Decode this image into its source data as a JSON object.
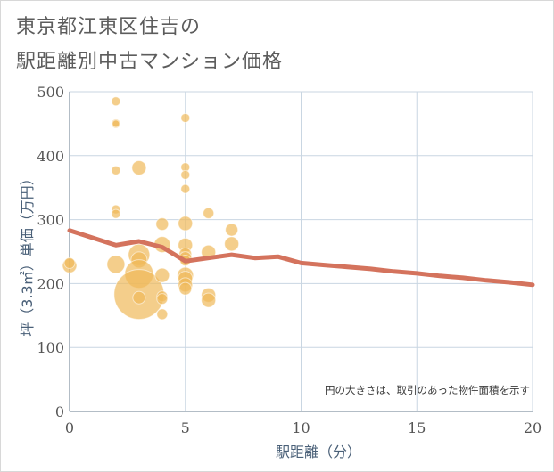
{
  "title_lines": [
    "東京都江東区住吉の",
    "駅距離別中古マンション価格"
  ],
  "chart_data": {
    "type": "scatter",
    "xlabel": "駅距離（分）",
    "ylabel": "坪（3.3㎡）単価（万円）",
    "xlim": [
      0,
      20
    ],
    "ylim": [
      0,
      500
    ],
    "xticks": [
      0,
      5,
      10,
      15,
      20
    ],
    "yticks": [
      0,
      100,
      200,
      300,
      400,
      500
    ],
    "note": "円の大きさは、取引のあった物件面積を示す",
    "grid": true,
    "colors": {
      "bubble": "#f0b95a",
      "trend": "#d4735d",
      "grid": "#c9d6e2",
      "axis": "#9aa7b4"
    },
    "bubbles": [
      {
        "x": 0,
        "y": 228,
        "s": 8
      },
      {
        "x": 0,
        "y": 232,
        "s": 6
      },
      {
        "x": 2,
        "y": 485,
        "s": 5
      },
      {
        "x": 2,
        "y": 450,
        "s": 5
      },
      {
        "x": 2,
        "y": 450,
        "s": 4
      },
      {
        "x": 2,
        "y": 377,
        "s": 5
      },
      {
        "x": 2,
        "y": 316,
        "s": 5
      },
      {
        "x": 2,
        "y": 309,
        "s": 5
      },
      {
        "x": 2,
        "y": 230,
        "s": 10
      },
      {
        "x": 3,
        "y": 381,
        "s": 8
      },
      {
        "x": 3,
        "y": 245,
        "s": 12
      },
      {
        "x": 3,
        "y": 237,
        "s": 9
      },
      {
        "x": 3,
        "y": 215,
        "s": 16
      },
      {
        "x": 3,
        "y": 183,
        "s": 28
      },
      {
        "x": 3,
        "y": 178,
        "s": 7
      },
      {
        "x": 4,
        "y": 293,
        "s": 7
      },
      {
        "x": 4,
        "y": 261,
        "s": 9
      },
      {
        "x": 4,
        "y": 213,
        "s": 8
      },
      {
        "x": 4,
        "y": 180,
        "s": 6
      },
      {
        "x": 4,
        "y": 176,
        "s": 6
      },
      {
        "x": 4,
        "y": 152,
        "s": 6
      },
      {
        "x": 5,
        "y": 459,
        "s": 5
      },
      {
        "x": 5,
        "y": 382,
        "s": 5
      },
      {
        "x": 5,
        "y": 370,
        "s": 5
      },
      {
        "x": 5,
        "y": 348,
        "s": 5
      },
      {
        "x": 5,
        "y": 294,
        "s": 8
      },
      {
        "x": 5,
        "y": 260,
        "s": 8
      },
      {
        "x": 5,
        "y": 246,
        "s": 7
      },
      {
        "x": 5,
        "y": 240,
        "s": 7
      },
      {
        "x": 5,
        "y": 236,
        "s": 6
      },
      {
        "x": 5,
        "y": 213,
        "s": 9
      },
      {
        "x": 5,
        "y": 208,
        "s": 8
      },
      {
        "x": 5,
        "y": 198,
        "s": 8
      },
      {
        "x": 5,
        "y": 192,
        "s": 7
      },
      {
        "x": 6,
        "y": 310,
        "s": 6
      },
      {
        "x": 6,
        "y": 249,
        "s": 8
      },
      {
        "x": 6,
        "y": 182,
        "s": 8
      },
      {
        "x": 6,
        "y": 174,
        "s": 8
      },
      {
        "x": 7,
        "y": 284,
        "s": 7
      },
      {
        "x": 7,
        "y": 262,
        "s": 8
      }
    ],
    "trend": {
      "x": [
        0,
        2,
        3,
        4,
        5,
        6,
        7,
        8,
        9,
        10,
        11,
        12,
        13,
        14,
        15,
        16,
        17,
        18,
        19,
        20
      ],
      "y": [
        283,
        260,
        266,
        257,
        235,
        240,
        245,
        240,
        242,
        232,
        229,
        226,
        223,
        219,
        216,
        212,
        209,
        205,
        202,
        198
      ]
    }
  }
}
